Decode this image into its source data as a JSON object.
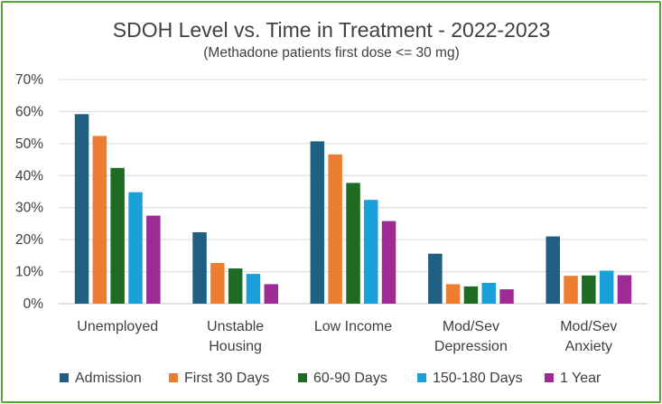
{
  "chart_data": {
    "type": "bar",
    "title": "SDOH Level vs. Time in Treatment - 2022-2023",
    "subtitle": "(Methadone patients first dose <= 30 mg)",
    "categories": [
      [
        "Unemployed"
      ],
      [
        "Unstable",
        "Housing"
      ],
      [
        "Low Income"
      ],
      [
        "Mod/Sev",
        "Depression"
      ],
      [
        "Mod/Sev",
        "Anxiety"
      ]
    ],
    "series": [
      {
        "name": "Admission",
        "color": "#1f5f82",
        "values": [
          59.2,
          22.3,
          50.7,
          15.6,
          21.0
        ]
      },
      {
        "name": "First 30 Days",
        "color": "#ed7d31",
        "values": [
          52.4,
          12.7,
          46.6,
          6.1,
          8.7
        ]
      },
      {
        "name": "60-90 Days",
        "color": "#1e6b24",
        "values": [
          42.4,
          11.0,
          37.7,
          5.4,
          8.8
        ]
      },
      {
        "name": "150-180 Days",
        "color": "#1aa0d8",
        "values": [
          34.8,
          9.3,
          32.4,
          6.5,
          10.3
        ]
      },
      {
        "name": "1 Year",
        "color": "#9e2a96",
        "values": [
          27.5,
          6.1,
          25.8,
          4.5,
          8.9
        ]
      }
    ],
    "yticks": [
      "0%",
      "10%",
      "20%",
      "30%",
      "40%",
      "50%",
      "60%",
      "70%"
    ],
    "ylim": [
      0,
      70
    ],
    "grid": true,
    "legend_position": "bottom"
  }
}
